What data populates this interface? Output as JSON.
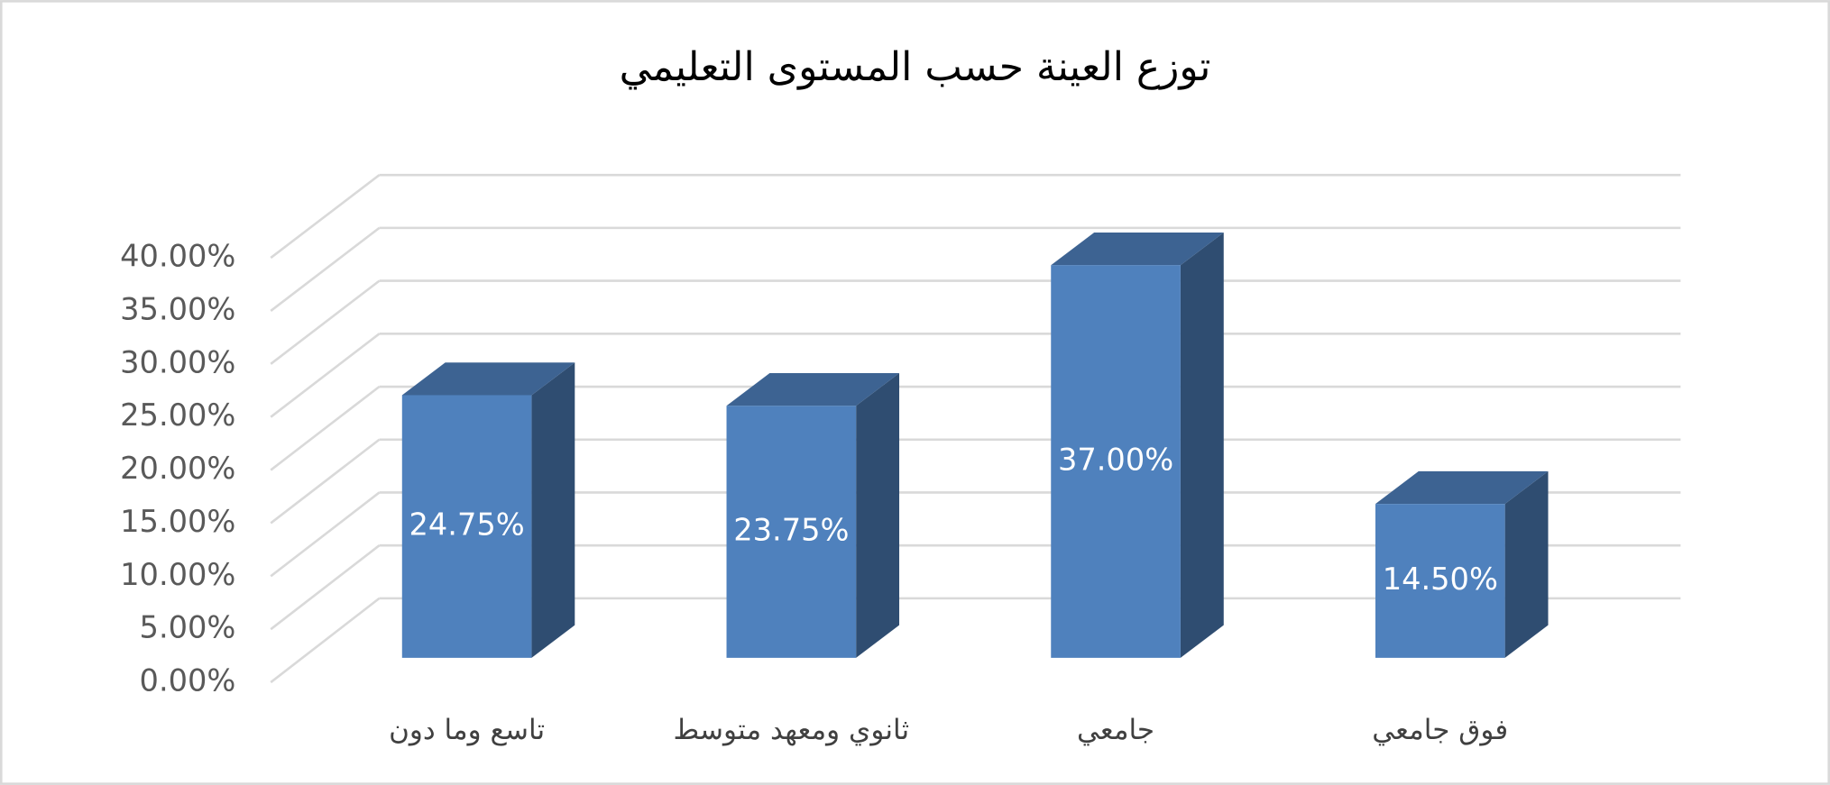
{
  "chart_data": {
    "type": "bar3d",
    "title": "توزع العينة حسب المستوى التعليمي",
    "categories": [
      "تاسع وما دون",
      "ثانوي ومعهد متوسط",
      "جامعي",
      "فوق جامعي"
    ],
    "values": [
      24.75,
      23.75,
      37,
      14.5
    ],
    "value_labels": [
      "24.75%",
      "23.75%",
      "37.00%",
      "14.50%"
    ],
    "color": "#4f81bd",
    "ylim": [
      0,
      40
    ],
    "yticks": [
      {
        "value": 0,
        "label": "0.00%"
      },
      {
        "value": 5,
        "label": "5.00%"
      },
      {
        "value": 10,
        "label": "10.00%"
      },
      {
        "value": 15,
        "label": "15.00%"
      },
      {
        "value": 20,
        "label": "20.00%"
      },
      {
        "value": 25,
        "label": "25.00%"
      },
      {
        "value": 30,
        "label": "30.00%"
      },
      {
        "value": 35,
        "label": "35.00%"
      },
      {
        "value": 40,
        "label": "40.00%"
      }
    ],
    "grid": true
  }
}
